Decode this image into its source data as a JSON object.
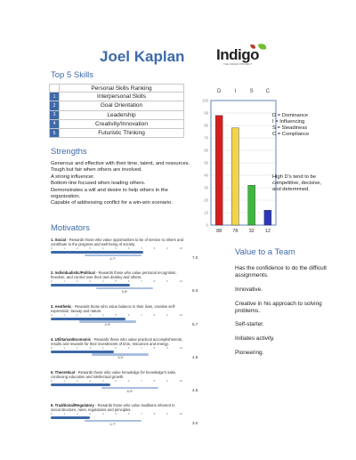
{
  "header": {
    "name": "Joel Kaplan",
    "logo_text": "Indigo",
    "logo_tagline": "THE INDIGO PROJECT"
  },
  "top_skills": {
    "title": "Top 5 Skills",
    "header": "Personal Skills Ranking",
    "items": [
      {
        "rank": "1",
        "label": "Interpersonal Skills"
      },
      {
        "rank": "2",
        "label": "Goal Orientation"
      },
      {
        "rank": "3",
        "label": "Leadership"
      },
      {
        "rank": "4",
        "label": "Creativity/Innovation"
      },
      {
        "rank": "5",
        "label": "Futuristic Thinking"
      }
    ]
  },
  "strengths": {
    "title": "Strengths",
    "lines": [
      "Generous and effective with their time, talent, and resources.",
      "Tough but fair when others are involved.",
      "A strong influencer.",
      "Bottom-line focused when leading others.",
      "Demonstrates a will and desire to help others in the organization.",
      "Capable of addressing conflict for a win-win scenario."
    ]
  },
  "motivators": {
    "title": "Motivators",
    "scale": [
      "0",
      "1",
      "2",
      "3",
      "4",
      "5",
      "6",
      "7",
      "8",
      "9",
      "10"
    ],
    "items": [
      {
        "name": "1. Social",
        "desc": " - Rewards those who value opportunities to be of service to others and contribute to the progress and well being of society.",
        "score": 7.0,
        "score_text": "7.0",
        "avg": 4.7,
        "avg_text": "4.7*"
      },
      {
        "name": "2. Individualistic/Political",
        "desc": " - Rewards those who value personal recognition, freedom, and control over their own destiny and others.",
        "score": 6.0,
        "score_text": "6.0",
        "avg": 5.6,
        "avg_text": "5.6*"
      },
      {
        "name": "3. Aesthetic",
        "desc": " - Rewards those who value balance in their lives, creative self-expression, beauty and nature.",
        "score": 5.7,
        "score_text": "5.7",
        "avg": 4.3,
        "avg_text": "4.3*"
      },
      {
        "name": "4. Utilitarian/Economic",
        "desc": " - Rewards those who value practical accomplishments, results and rewards for their investments of time, resources and energy.",
        "score": 4.8,
        "score_text": "4.8",
        "avg": 5.3,
        "avg_text": "5.3*"
      },
      {
        "name": "5. Theoretical",
        "desc": " - Rewards those who value knowledge for knowledge's sake, continuing education and intellectual growth.",
        "score": 4.5,
        "score_text": "4.5",
        "avg": 6.0,
        "avg_text": "6.0*"
      },
      {
        "name": "6. Traditional/Regulatory",
        "desc": " - Rewards those who value traditions inherent in social structure, rules, regulations and principles.",
        "score": 3.0,
        "score_text": "3.0",
        "avg": 4.7,
        "avg_text": "4.7*"
      }
    ]
  },
  "disc": {
    "letters": [
      "D",
      "I",
      "S",
      "C"
    ],
    "legend": [
      "D = Dominance",
      "I = Influencing",
      "S = Steadiness",
      "C = Compliance"
    ],
    "note": "High D's tend to be competitive, decisive, and determined.",
    "colors": {
      "D": "#d81e1e",
      "I": "#f2d44a",
      "S": "#3cb83c",
      "C": "#2e36b8"
    }
  },
  "chart_data": {
    "type": "bar",
    "categories": [
      "D",
      "I",
      "S",
      "C"
    ],
    "values": [
      88,
      78,
      32,
      12
    ],
    "ylim": [
      0,
      100
    ],
    "yticks": [
      0,
      10,
      20,
      30,
      40,
      50,
      60,
      70,
      80,
      90,
      100
    ],
    "data_labels": [
      "88",
      "78",
      "32",
      "12"
    ],
    "grid": true
  },
  "value_to_team": {
    "title": "Value to a Team",
    "items": [
      "Has the confidence to do the difficult assignments.",
      "Innovative.",
      "Creative in his approach to solving problems.",
      "Self-starter.",
      "Initiates activity.",
      "Pioneering."
    ]
  }
}
